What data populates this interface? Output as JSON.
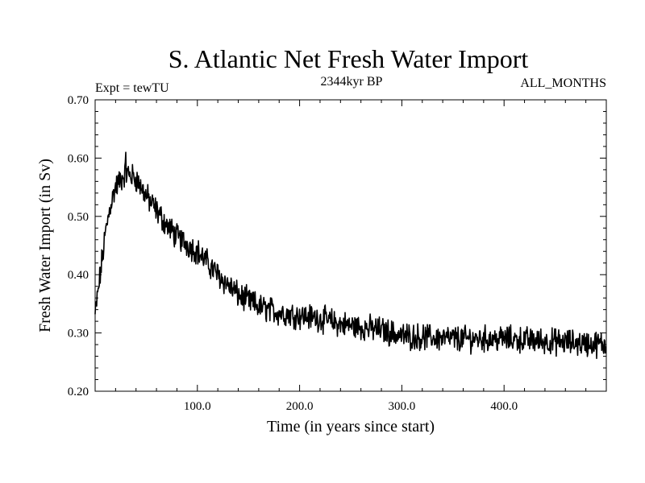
{
  "chart_data": {
    "type": "line",
    "title": "S. Atlantic Net Fresh Water Import",
    "subtitle_left": "Expt = tewTU",
    "subtitle_center": "2344kyr BP",
    "subtitle_right": "ALL_MONTHS",
    "xlabel": "Time (in years since start)",
    "ylabel": "Fresh Water Import (in Sv)",
    "xlim": [
      0,
      500
    ],
    "ylim": [
      0.2,
      0.7
    ],
    "xticks": [
      100,
      200,
      300,
      400
    ],
    "xtick_labels": [
      "100.0",
      "200.0",
      "300.0",
      "400.0"
    ],
    "yticks": [
      0.2,
      0.3,
      0.4,
      0.5,
      0.6,
      0.7
    ],
    "ytick_labels": [
      "0.20",
      "0.30",
      "0.40",
      "0.50",
      "0.60",
      "0.70"
    ],
    "grid": false,
    "series": [
      {
        "name": "Fresh Water Import",
        "color": "#000000",
        "sample_interval_years": 1,
        "trend_points": [
          {
            "x": 0,
            "y": 0.33
          },
          {
            "x": 5,
            "y": 0.4
          },
          {
            "x": 10,
            "y": 0.47
          },
          {
            "x": 15,
            "y": 0.52
          },
          {
            "x": 20,
            "y": 0.55
          },
          {
            "x": 30,
            "y": 0.575
          },
          {
            "x": 40,
            "y": 0.565
          },
          {
            "x": 50,
            "y": 0.535
          },
          {
            "x": 60,
            "y": 0.51
          },
          {
            "x": 70,
            "y": 0.485
          },
          {
            "x": 80,
            "y": 0.465
          },
          {
            "x": 100,
            "y": 0.44
          },
          {
            "x": 120,
            "y": 0.4
          },
          {
            "x": 140,
            "y": 0.365
          },
          {
            "x": 160,
            "y": 0.345
          },
          {
            "x": 180,
            "y": 0.335
          },
          {
            "x": 200,
            "y": 0.33
          },
          {
            "x": 220,
            "y": 0.325
          },
          {
            "x": 240,
            "y": 0.315
          },
          {
            "x": 260,
            "y": 0.31
          },
          {
            "x": 280,
            "y": 0.305
          },
          {
            "x": 300,
            "y": 0.295
          },
          {
            "x": 350,
            "y": 0.29
          },
          {
            "x": 400,
            "y": 0.29
          },
          {
            "x": 450,
            "y": 0.285
          },
          {
            "x": 500,
            "y": 0.28
          }
        ],
        "noise_amplitude": 0.018,
        "peak": {
          "x": 30,
          "y": 0.61
        }
      }
    ]
  }
}
